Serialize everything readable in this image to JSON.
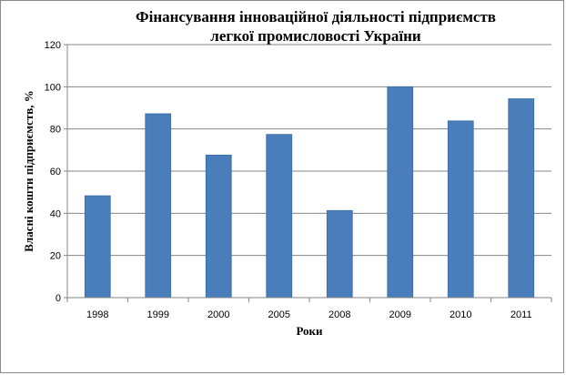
{
  "chart_data": {
    "type": "bar",
    "title_lines": [
      "Фінансування інноваційної діяльності підприємств",
      "легкої  промисловості України"
    ],
    "xlabel": "Роки",
    "ylabel": "Власні кошти підприємств, %",
    "categories": [
      "1998",
      "1999",
      "2000",
      "2005",
      "2008",
      "2009",
      "2010",
      "2011"
    ],
    "values": [
      48.3,
      87.2,
      67.6,
      77.4,
      41.3,
      100,
      83.8,
      94.3
    ],
    "ylim": [
      0,
      120
    ],
    "yticks": [
      "0",
      "20",
      "40",
      "60",
      "80",
      "100",
      "120"
    ],
    "grid": true,
    "legend": "none",
    "bar_color": "#4a7ebb",
    "bar_edge_color": "#3a6aa5",
    "grid_color": "#868686"
  }
}
